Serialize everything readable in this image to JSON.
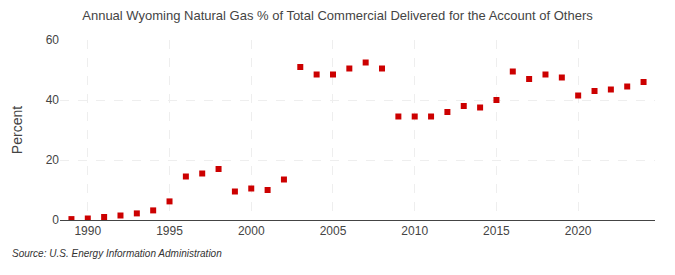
{
  "chart_data": {
    "type": "scatter",
    "title": "Annual Wyoming Natural Gas % of Total Commercial Delivered for the Account of Others",
    "ylabel": "Percent",
    "annotations": [
      "Source: U.S. Energy Information Administration"
    ],
    "color": "#cc0000",
    "marker": "square",
    "grid": true,
    "xlim": [
      1988.3,
      2024.7
    ],
    "ylim": [
      0,
      60
    ],
    "xticks": [
      1990,
      1995,
      2000,
      2005,
      2010,
      2015,
      2020
    ],
    "yticks": [
      0,
      20,
      40,
      60
    ],
    "x": [
      1989,
      1990,
      1991,
      1992,
      1993,
      1994,
      1995,
      1996,
      1997,
      1998,
      1999,
      2000,
      2001,
      2002,
      2003,
      2004,
      2005,
      2006,
      2007,
      2008,
      2009,
      2010,
      2011,
      2012,
      2013,
      2014,
      2015,
      2016,
      2017,
      2018,
      2019,
      2020,
      2021,
      2022,
      2023,
      2024
    ],
    "values": [
      0.3,
      0.5,
      1.0,
      1.5,
      2.2,
      3.2,
      6.2,
      14.5,
      15.5,
      17.0,
      9.5,
      10.5,
      10.0,
      13.5,
      51.0,
      48.5,
      48.5,
      50.5,
      52.5,
      50.5,
      34.5,
      34.5,
      34.5,
      36.0,
      38.0,
      37.5,
      40.0,
      49.5,
      47.0,
      48.5,
      47.5,
      41.5,
      43.0,
      43.5,
      44.5,
      46.0
    ]
  }
}
